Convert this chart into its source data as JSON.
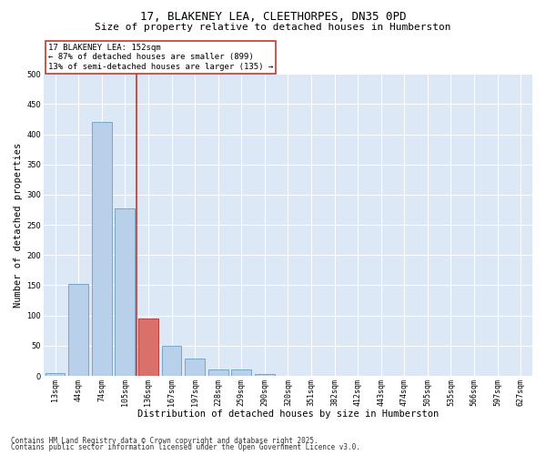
{
  "title": "17, BLAKENEY LEA, CLEETHORPES, DN35 0PD",
  "subtitle": "Size of property relative to detached houses in Humberston",
  "xlabel": "Distribution of detached houses by size in Humberston",
  "ylabel": "Number of detached properties",
  "categories": [
    "13sqm",
    "44sqm",
    "74sqm",
    "105sqm",
    "136sqm",
    "167sqm",
    "197sqm",
    "228sqm",
    "259sqm",
    "290sqm",
    "320sqm",
    "351sqm",
    "382sqm",
    "412sqm",
    "443sqm",
    "474sqm",
    "505sqm",
    "535sqm",
    "566sqm",
    "597sqm",
    "627sqm"
  ],
  "values": [
    5,
    152,
    420,
    277,
    95,
    50,
    28,
    10,
    10,
    3,
    0,
    0,
    0,
    0,
    0,
    0,
    0,
    0,
    0,
    0,
    0
  ],
  "bar_color": "#b8d0ea",
  "bar_edge_color": "#6a9fc0",
  "highlight_bar_index": 4,
  "highlight_bar_color": "#d9706a",
  "highlight_bar_edge_color": "#b03030",
  "vline_color": "#c0392b",
  "annotation_text": "17 BLAKENEY LEA: 152sqm\n← 87% of detached houses are smaller (899)\n13% of semi-detached houses are larger (135) →",
  "annotation_box_color": "#ffffff",
  "annotation_border_color": "#c0392b",
  "ylim": [
    0,
    500
  ],
  "yticks": [
    0,
    50,
    100,
    150,
    200,
    250,
    300,
    350,
    400,
    450,
    500
  ],
  "plot_bg_color": "#dce8f5",
  "footer_line1": "Contains HM Land Registry data © Crown copyright and database right 2025.",
  "footer_line2": "Contains public sector information licensed under the Open Government Licence v3.0.",
  "title_fontsize": 9,
  "subtitle_fontsize": 8,
  "xlabel_fontsize": 7.5,
  "ylabel_fontsize": 7.5,
  "tick_fontsize": 6,
  "annotation_fontsize": 6.5,
  "footer_fontsize": 5.5
}
